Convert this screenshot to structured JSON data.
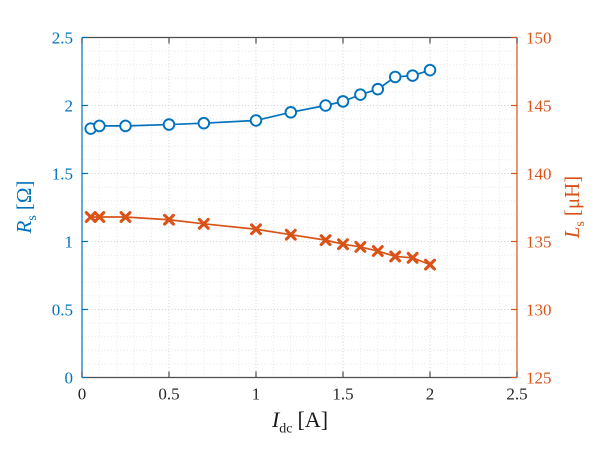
{
  "labels": {
    "x": {
      "symbol": "I",
      "subscript": "dc",
      "unit": "[A]"
    },
    "y_left": {
      "symbol": "R",
      "subscript": "s",
      "unit": "[Ω]"
    },
    "y_right": {
      "symbol": "L",
      "subscript": "s",
      "unit": "[μH]"
    }
  },
  "chart_data": {
    "type": "line",
    "title": "",
    "xlabel": "I_dc [A]",
    "ylabel_left": "R_s [Ω]",
    "ylabel_right": "L_s [μH]",
    "grid": {
      "major": true,
      "minor": true,
      "style": "dotted"
    },
    "x": [
      0.05,
      0.1,
      0.25,
      0.5,
      0.7,
      1.0,
      1.2,
      1.4,
      1.5,
      1.6,
      1.7,
      1.8,
      1.9,
      2.0
    ],
    "series": [
      {
        "name": "R_s",
        "axis": "left",
        "color": "#0072BD",
        "marker": "circle",
        "values": [
          1.83,
          1.85,
          1.85,
          1.86,
          1.87,
          1.89,
          1.95,
          2.0,
          2.03,
          2.08,
          2.12,
          2.21,
          2.22,
          2.26
        ]
      },
      {
        "name": "L_s",
        "axis": "right",
        "color": "#D95319",
        "marker": "x",
        "values": [
          136.8,
          136.8,
          136.8,
          136.6,
          136.3,
          135.9,
          135.5,
          135.1,
          134.8,
          134.6,
          134.3,
          133.9,
          133.8,
          133.3
        ]
      }
    ],
    "axes": {
      "x": {
        "range": [
          0,
          2.5
        ],
        "ticks": [
          0,
          0.5,
          1,
          1.5,
          2,
          2.5
        ],
        "tick_labels": [
          "0",
          "0.5",
          "1",
          "1.5",
          "2",
          "2.5"
        ],
        "minor_step": 0.1,
        "color": "#262626"
      },
      "y_left": {
        "range": [
          0,
          2.5
        ],
        "ticks": [
          0,
          0.5,
          1,
          1.5,
          2,
          2.5
        ],
        "tick_labels": [
          "0",
          "0.5",
          "1",
          "1.5",
          "2",
          "2.5"
        ],
        "minor_step": 0.1,
        "color": "#0072BD"
      },
      "y_right": {
        "range": [
          125,
          150
        ],
        "ticks": [
          125,
          130,
          135,
          140,
          145,
          150
        ],
        "tick_labels": [
          "125",
          "130",
          "135",
          "140",
          "145",
          "150"
        ],
        "minor_step": 1,
        "color": "#D95319"
      }
    },
    "frame_color": "#4d4d4d",
    "grid_major_color": "#cfcfcf",
    "grid_minor_color": "#e6e6e6"
  }
}
